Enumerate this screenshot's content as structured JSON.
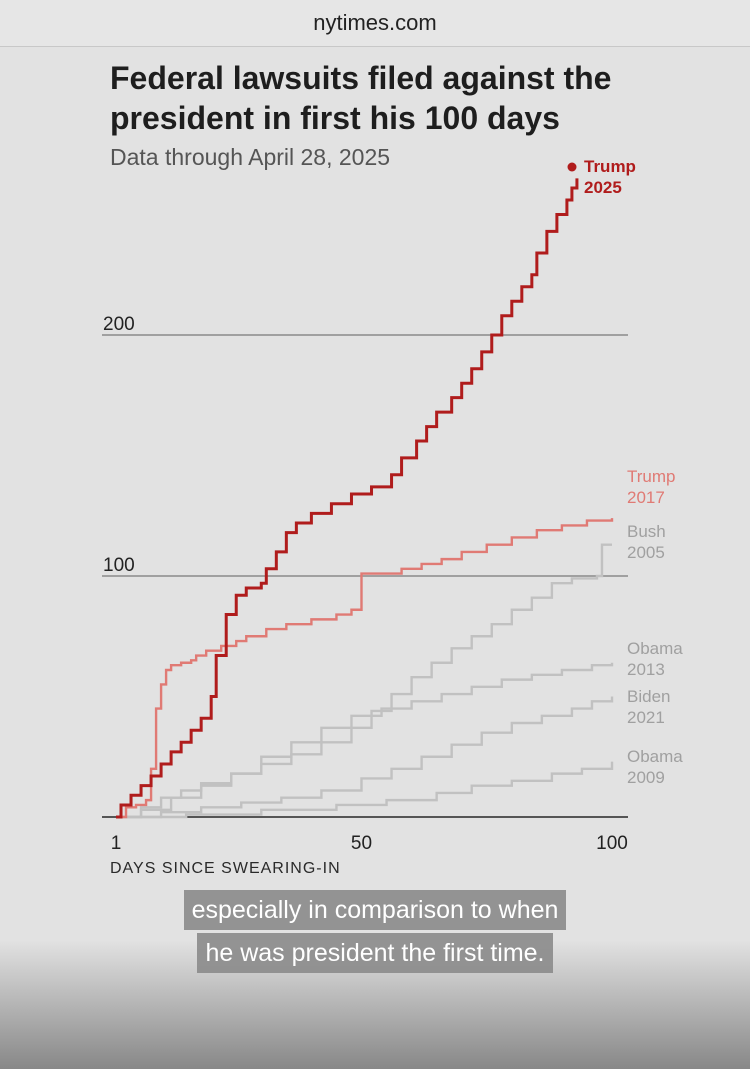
{
  "header": {
    "url": "nytimes.com"
  },
  "caption": {
    "line1": "especially in comparison to when",
    "line2": "he was president the first time."
  },
  "colors": {
    "trump2025": "#b01c1c",
    "trump2017": "#e07a74",
    "gray": "#c1c1c1",
    "gray_label": "#a0a0a0",
    "gridline": "#8a8a8a"
  },
  "chart_data": {
    "type": "line",
    "title": "Federal lawsuits filed against the president in first his 100 days",
    "subtitle": "Data through April 28, 2025",
    "xlabel": "DAYS SINCE SWEARING-IN",
    "ylabel": "",
    "xlim": [
      1,
      100
    ],
    "ylim": [
      0,
      270
    ],
    "x_ticks": [
      {
        "value": 1,
        "label": "1"
      },
      {
        "value": 50,
        "label": "50"
      },
      {
        "value": 100,
        "label": "100"
      }
    ],
    "y_ticks": [
      {
        "value": 100,
        "label": "100"
      },
      {
        "value": 200,
        "label": "200"
      }
    ],
    "series": [
      {
        "id": "trump2025",
        "name": "Trump",
        "year": "2025",
        "color_key": "trump2025",
        "end_dot": true,
        "points": [
          [
            1,
            0
          ],
          [
            2,
            5
          ],
          [
            4,
            9
          ],
          [
            6,
            13
          ],
          [
            8,
            17
          ],
          [
            10,
            22
          ],
          [
            12,
            27
          ],
          [
            14,
            31
          ],
          [
            16,
            36
          ],
          [
            18,
            41
          ],
          [
            20,
            50
          ],
          [
            21,
            67
          ],
          [
            23,
            84
          ],
          [
            25,
            92
          ],
          [
            27,
            95
          ],
          [
            30,
            97
          ],
          [
            31,
            103
          ],
          [
            33,
            110
          ],
          [
            35,
            118
          ],
          [
            37,
            122
          ],
          [
            40,
            126
          ],
          [
            44,
            130
          ],
          [
            48,
            134
          ],
          [
            52,
            137
          ],
          [
            56,
            142
          ],
          [
            58,
            149
          ],
          [
            61,
            156
          ],
          [
            63,
            162
          ],
          [
            65,
            168
          ],
          [
            68,
            174
          ],
          [
            70,
            180
          ],
          [
            72,
            186
          ],
          [
            74,
            193
          ],
          [
            76,
            200
          ],
          [
            78,
            208
          ],
          [
            80,
            214
          ],
          [
            82,
            220
          ],
          [
            84,
            225
          ],
          [
            85,
            234
          ],
          [
            87,
            243
          ],
          [
            89,
            250
          ],
          [
            91,
            256
          ],
          [
            92,
            261
          ],
          [
            93,
            265
          ]
        ]
      },
      {
        "id": "trump2017",
        "name": "Trump",
        "year": "2017",
        "color_key": "trump2017",
        "points": [
          [
            1,
            0
          ],
          [
            3,
            4
          ],
          [
            5,
            5
          ],
          [
            7,
            7
          ],
          [
            8,
            20
          ],
          [
            9,
            45
          ],
          [
            10,
            55
          ],
          [
            11,
            61
          ],
          [
            12,
            63
          ],
          [
            14,
            64
          ],
          [
            16,
            65
          ],
          [
            17,
            67
          ],
          [
            19,
            69
          ],
          [
            22,
            71
          ],
          [
            25,
            73
          ],
          [
            27,
            75
          ],
          [
            31,
            78
          ],
          [
            35,
            80
          ],
          [
            40,
            82
          ],
          [
            45,
            84
          ],
          [
            48,
            86
          ],
          [
            50,
            101
          ],
          [
            54,
            101
          ],
          [
            58,
            103
          ],
          [
            62,
            105
          ],
          [
            66,
            107
          ],
          [
            70,
            110
          ],
          [
            75,
            113
          ],
          [
            80,
            116
          ],
          [
            85,
            119
          ],
          [
            90,
            121
          ],
          [
            95,
            123
          ],
          [
            100,
            124
          ]
        ]
      },
      {
        "id": "bush2005",
        "name": "Bush",
        "year": "2005",
        "color_key": "gray",
        "points": [
          [
            1,
            0
          ],
          [
            6,
            4
          ],
          [
            10,
            8
          ],
          [
            14,
            11
          ],
          [
            18,
            14
          ],
          [
            24,
            18
          ],
          [
            30,
            22
          ],
          [
            36,
            26
          ],
          [
            42,
            31
          ],
          [
            48,
            37
          ],
          [
            52,
            44
          ],
          [
            56,
            51
          ],
          [
            60,
            58
          ],
          [
            64,
            64
          ],
          [
            68,
            70
          ],
          [
            72,
            75
          ],
          [
            76,
            80
          ],
          [
            80,
            86
          ],
          [
            84,
            91
          ],
          [
            88,
            97
          ],
          [
            92,
            99
          ],
          [
            97,
            100
          ],
          [
            98,
            113
          ],
          [
            100,
            113
          ]
        ]
      },
      {
        "id": "obama2013",
        "name": "Obama",
        "year": "2013",
        "color_key": "gray",
        "points": [
          [
            1,
            0
          ],
          [
            6,
            3
          ],
          [
            12,
            8
          ],
          [
            18,
            13
          ],
          [
            24,
            18
          ],
          [
            30,
            25
          ],
          [
            36,
            31
          ],
          [
            42,
            37
          ],
          [
            48,
            42
          ],
          [
            54,
            45
          ],
          [
            60,
            48
          ],
          [
            66,
            51
          ],
          [
            72,
            54
          ],
          [
            78,
            57
          ],
          [
            84,
            59
          ],
          [
            90,
            61
          ],
          [
            96,
            63
          ],
          [
            100,
            64
          ]
        ]
      },
      {
        "id": "biden2021",
        "name": "Biden",
        "year": "2021",
        "color_key": "gray",
        "points": [
          [
            1,
            0
          ],
          [
            10,
            2
          ],
          [
            18,
            4
          ],
          [
            26,
            6
          ],
          [
            34,
            8
          ],
          [
            42,
            11
          ],
          [
            50,
            16
          ],
          [
            56,
            20
          ],
          [
            62,
            25
          ],
          [
            68,
            30
          ],
          [
            74,
            35
          ],
          [
            80,
            39
          ],
          [
            86,
            42
          ],
          [
            92,
            45
          ],
          [
            96,
            48
          ],
          [
            100,
            50
          ]
        ]
      },
      {
        "id": "obama2009",
        "name": "Obama",
        "year": "2009",
        "color_key": "gray",
        "points": [
          [
            1,
            0
          ],
          [
            15,
            1
          ],
          [
            30,
            3
          ],
          [
            45,
            5
          ],
          [
            55,
            7
          ],
          [
            65,
            10
          ],
          [
            72,
            13
          ],
          [
            80,
            15
          ],
          [
            88,
            18
          ],
          [
            94,
            20
          ],
          [
            100,
            23
          ]
        ]
      }
    ]
  }
}
